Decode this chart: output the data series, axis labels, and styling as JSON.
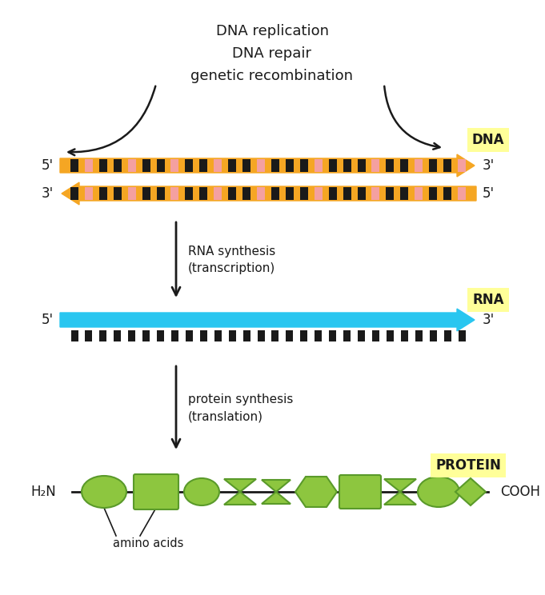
{
  "bg_color": "#ffffff",
  "dna_arrow_color": "#F5A623",
  "dna_base_black": "#1a1a1a",
  "dna_base_pink": "#F4A0A0",
  "rna_color": "#29C6F0",
  "rna_base_black": "#1a1a1a",
  "protein_color": "#8DC63F",
  "protein_edge_color": "#5a9a2a",
  "protein_line_color": "#1a1a1a",
  "label_bg_color": "#FFFF99",
  "text_color": "#1a1a1a",
  "arrow_color": "#1a1a1a",
  "dna_label": "DNA",
  "rna_label": "RNA",
  "protein_label": "PROTEIN",
  "top_text_lines": [
    "DNA replication",
    "DNA repair",
    "genetic recombination"
  ],
  "transcription_text": "RNA synthesis\n(transcription)",
  "translation_text": "protein synthesis\n(translation)",
  "amino_acids_text": "amino acids",
  "h2n_text": "H₂N",
  "cooh_text": "COOH",
  "figsize": [
    6.81,
    7.44
  ],
  "dpi": 100,
  "dna_n_bases": 28,
  "dna_pink_indices": [
    1,
    4,
    7,
    10,
    13,
    17,
    21,
    24,
    27
  ],
  "rna_n_bases": 28
}
